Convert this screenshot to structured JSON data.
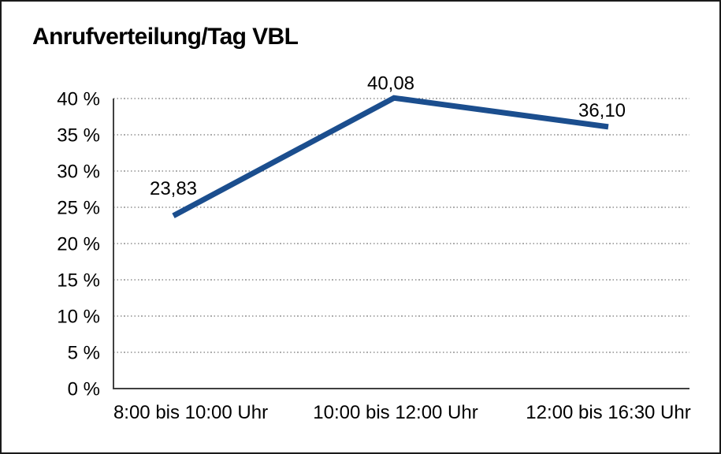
{
  "chart_data": {
    "type": "line",
    "title": "Anrufverteilung/Tag VBL",
    "categories": [
      "8:00 bis 10:00 Uhr",
      "10:00 bis 12:00 Uhr",
      "12:00 bis 16:30 Uhr"
    ],
    "series": [
      {
        "name": "Anrufverteilung/Tag VBL",
        "values": [
          23.83,
          40.08,
          36.1
        ]
      }
    ],
    "value_labels": [
      "23,83",
      "40,08",
      "36,10"
    ],
    "xlabel": "",
    "ylabel": "",
    "ylim": [
      0,
      40
    ],
    "ytick_step": 5,
    "ytick_labels": [
      "0 %",
      "5 %",
      "10 %",
      "15 %",
      "20 %",
      "25 %",
      "30 %",
      "35 %",
      "40 %"
    ],
    "grid": "horizontal-dotted",
    "legend": "none",
    "colors": {
      "line": "#1b4e8e",
      "grid_dots": "#595959",
      "axis": "#404040",
      "text": "#000000",
      "background": "#ffffff",
      "border": "#1a1a1a"
    }
  }
}
